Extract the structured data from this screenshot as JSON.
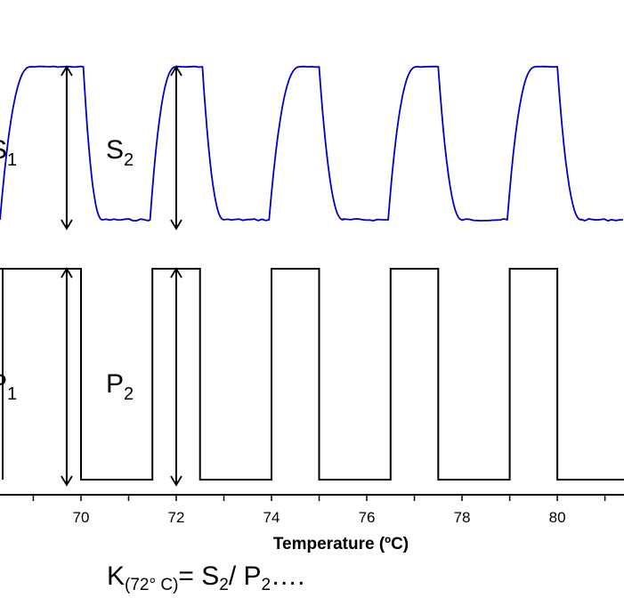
{
  "chart_data": {
    "type": "line",
    "xlabel": "Temperature (ºC)",
    "xlim": [
      68.3,
      81.4
    ],
    "x_ticks": [
      70,
      72,
      74,
      76,
      78,
      80
    ],
    "x_tick_labels": [
      "70",
      "72",
      "74",
      "76",
      "78",
      "80"
    ],
    "grid": false,
    "series": [
      {
        "color": "#0000cc",
        "levels": {
          "low": 0,
          "high": 1
        },
        "cycles": [
          {
            "rise_start": 68.3,
            "plateau_start": 68.95,
            "fall_start": 70.05,
            "fall_end": 70.45
          },
          {
            "rise_start": 71.45,
            "plateau_start": 72.0,
            "fall_start": 72.55,
            "fall_end": 73.0
          },
          {
            "rise_start": 73.95,
            "plateau_start": 74.6,
            "fall_start": 75.0,
            "fall_end": 75.5
          },
          {
            "rise_start": 76.45,
            "plateau_start": 77.05,
            "fall_start": 77.5,
            "fall_end": 78.0
          },
          {
            "rise_start": 78.95,
            "plateau_start": 79.55,
            "fall_start": 80.0,
            "fall_end": 80.5
          }
        ]
      },
      {
        "color": "#000000",
        "levels": {
          "low": 0,
          "high": 1
        },
        "pulses": [
          {
            "on": 68.3,
            "off": 70.0
          },
          {
            "on": 71.5,
            "off": 72.5
          },
          {
            "on": 74.0,
            "off": 75.0
          },
          {
            "on": 76.5,
            "off": 77.5
          },
          {
            "on": 79.0,
            "off": 80.0
          }
        ]
      }
    ],
    "annotations": {
      "s1": {
        "main": "S",
        "sub": "1",
        "x": 69.7
      },
      "s2": {
        "main": "S",
        "sub": "2",
        "x": 72.0
      },
      "p1": {
        "main": "P",
        "sub": "1",
        "x": 69.7
      },
      "p2": {
        "main": "P",
        "sub": "2",
        "x": 72.0
      }
    },
    "formula": {
      "k": "K",
      "k_sub": "(72° C)",
      "eq": "= S",
      "s_sub": "2",
      "slash": "/ P",
      "p_sub": "2",
      "tail": "…."
    }
  }
}
